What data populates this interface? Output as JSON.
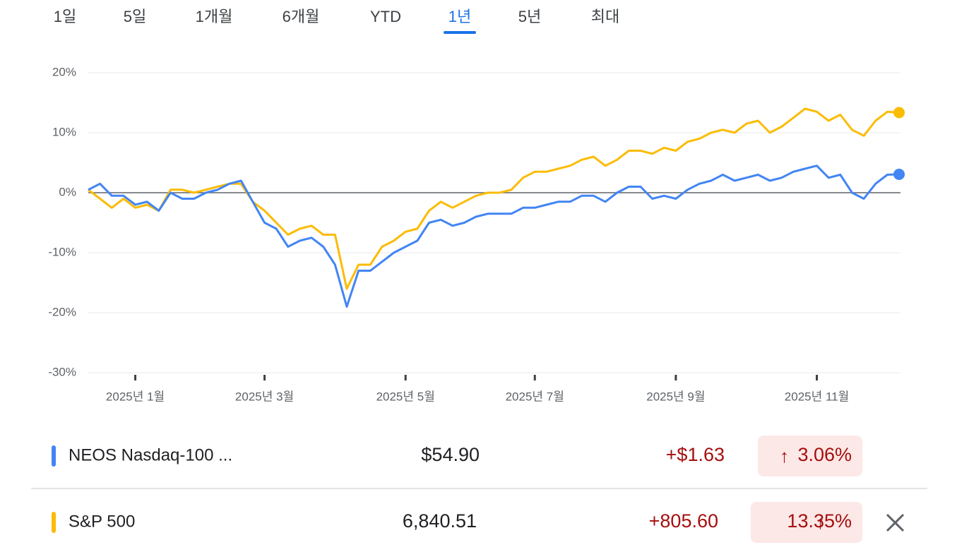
{
  "tabs": [
    "1일",
    "5일",
    "1개월",
    "6개월",
    "YTD",
    "1년",
    "5년",
    "최대"
  ],
  "selected_tab": 5,
  "chart_data": {
    "type": "line",
    "categories": [
      null,
      null,
      null,
      null,
      "2025년 1월",
      null,
      null,
      null,
      null,
      null,
      null,
      null,
      null,
      null,
      null,
      "2025년 3월",
      null,
      null,
      null,
      null,
      null,
      null,
      null,
      null,
      null,
      null,
      null,
      "2025년 5월",
      null,
      null,
      null,
      null,
      null,
      null,
      null,
      null,
      null,
      null,
      "2025년 7월",
      null,
      null,
      null,
      null,
      null,
      null,
      null,
      null,
      null,
      null,
      null,
      "2025년 9월",
      null,
      null,
      null,
      null,
      null,
      null,
      null,
      null,
      null,
      null,
      null,
      "2025년 11월",
      null,
      null,
      null,
      null,
      null,
      null,
      null
    ],
    "series": [
      {
        "name": "NEOS Nasdaq-100 ...",
        "color": "#4285f4",
        "values": [
          0.5,
          1.5,
          -0.5,
          -0.5,
          -2,
          -1.5,
          -3,
          0,
          -1,
          -1,
          0,
          0.5,
          1.5,
          2,
          -1.5,
          -5,
          -6,
          -9,
          -8,
          -7.5,
          -9,
          -12,
          -19,
          -13,
          -13,
          -11.5,
          -10,
          -9,
          -8,
          -5,
          -4.5,
          -5.5,
          -5,
          -4,
          -3.5,
          -3.5,
          -3.5,
          -2.5,
          -2.5,
          -2,
          -1.5,
          -1.5,
          -0.5,
          -0.5,
          -1.5,
          0,
          1,
          1,
          -1,
          -0.5,
          -1,
          0.5,
          1.5,
          2,
          3,
          2,
          2.5,
          3,
          2,
          2.5,
          3.5,
          4,
          4.5,
          2.5,
          3,
          0,
          -1,
          1.5,
          3,
          3.06
        ]
      },
      {
        "name": "S&P 500",
        "color": "#fbbc04",
        "values": [
          0.5,
          -1,
          -2.5,
          -1,
          -2.5,
          -2,
          -3,
          0.5,
          0.5,
          0,
          0.5,
          1,
          1.5,
          1.5,
          -1.5,
          -3,
          -5,
          -7,
          -6,
          -5.5,
          -7,
          -7,
          -16,
          -12,
          -12,
          -9,
          -8,
          -6.5,
          -6,
          -3,
          -1.5,
          -2.5,
          -1.5,
          -0.5,
          0,
          0,
          0.5,
          2.5,
          3.5,
          3.5,
          4,
          4.5,
          5.5,
          6,
          4.5,
          5.5,
          7,
          7,
          6.5,
          7.5,
          7,
          8.5,
          9,
          10,
          10.5,
          10,
          11.5,
          12,
          10,
          11,
          12.5,
          14,
          13.5,
          12,
          13,
          10.5,
          9.5,
          12,
          13.5,
          13.35
        ]
      }
    ],
    "ylim": [
      -30,
      20
    ],
    "yticks": [
      {
        "value": -30,
        "label": "-30%"
      },
      {
        "value": -20,
        "label": "-20%"
      },
      {
        "value": -10,
        "label": "-10%"
      },
      {
        "value": 0,
        "label": "0%"
      },
      {
        "value": 10,
        "label": "10%"
      },
      {
        "value": 20,
        "label": "20%"
      }
    ],
    "grid": true
  },
  "comparison": [
    {
      "price": "$54.90",
      "change": "+$1.63",
      "change_percent": "3.06%"
    },
    {
      "price": "6,840.51",
      "change": "+805.60",
      "change_percent": "13.35%"
    }
  ]
}
